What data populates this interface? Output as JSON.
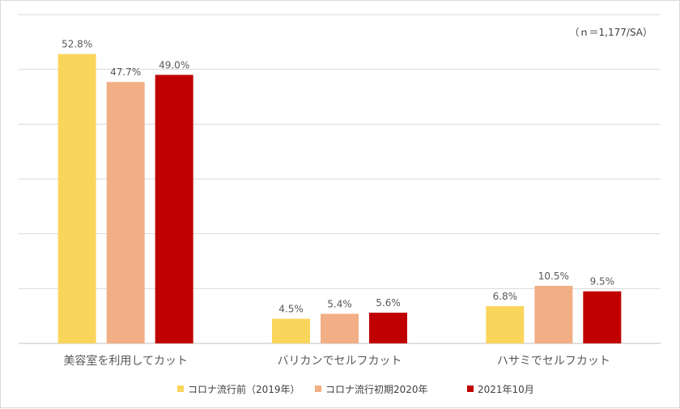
{
  "note": "（ｎ＝1,177/SA）",
  "colors": {
    "series_1": "#fad55c",
    "series_2": "#f2ae85",
    "series_3": "#c00000"
  },
  "chart_data": {
    "type": "bar",
    "categories": [
      "美容室を利用してカット",
      "バリカンでセルフカット",
      "ハサミでセルフカット"
    ],
    "series": [
      {
        "name": "コロナ流行前（2019年）",
        "values": [
          52.8,
          4.5,
          6.8
        ],
        "labels": [
          "52.8%",
          "4.5%",
          "6.8%"
        ]
      },
      {
        "name": "コロナ流行初期2020年",
        "values": [
          47.7,
          5.4,
          10.5
        ],
        "labels": [
          "47.7%",
          "5.4%",
          "10.5%"
        ]
      },
      {
        "name": "2021年10月",
        "values": [
          49.0,
          5.6,
          9.5
        ],
        "labels": [
          "49.0%",
          "5.6%",
          "9.5%"
        ]
      }
    ],
    "ylim": [
      0,
      60
    ],
    "gridlines": true,
    "legend_position": "bottom"
  }
}
